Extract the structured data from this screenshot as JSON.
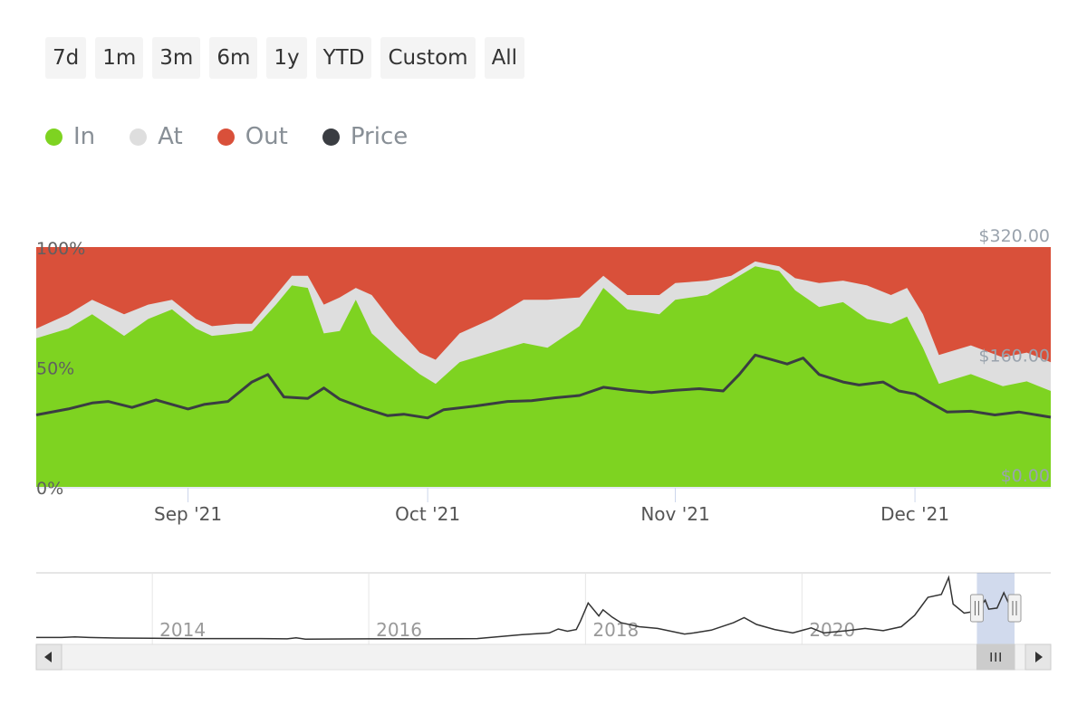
{
  "range_buttons": [
    "7d",
    "1m",
    "3m",
    "6m",
    "1y",
    "YTD",
    "Custom",
    "All"
  ],
  "legend": [
    {
      "label": "In",
      "color": "#7ed321"
    },
    {
      "label": "At",
      "color": "#dedede"
    },
    {
      "label": "Out",
      "color": "#d9503a"
    },
    {
      "label": "Price",
      "color": "#3a3d42"
    }
  ],
  "chart_data": {
    "type": "area",
    "stacked": true,
    "percent": true,
    "x_start": "2021-08-13",
    "x_end": "2021-12-18",
    "x_ticks": [
      {
        "date": "2021-09-01",
        "label": "Sep '21"
      },
      {
        "date": "2021-10-01",
        "label": "Oct '21"
      },
      {
        "date": "2021-11-01",
        "label": "Nov '21"
      },
      {
        "date": "2021-12-01",
        "label": "Dec '21"
      }
    ],
    "y_left": {
      "ticks": [
        "0%",
        "50%",
        "100%"
      ],
      "range": [
        0,
        100
      ]
    },
    "y_right": {
      "ticks": [
        "$0.00",
        "$160.00",
        "$320.00"
      ],
      "range": [
        0,
        320
      ]
    },
    "series_in": [
      [
        "2021-08-13",
        62
      ],
      [
        "2021-08-17",
        66
      ],
      [
        "2021-08-20",
        72
      ],
      [
        "2021-08-24",
        63
      ],
      [
        "2021-08-27",
        70
      ],
      [
        "2021-08-30",
        74
      ],
      [
        "2021-09-02",
        66
      ],
      [
        "2021-09-04",
        63
      ],
      [
        "2021-09-07",
        64
      ],
      [
        "2021-09-09",
        65
      ],
      [
        "2021-09-12",
        76
      ],
      [
        "2021-09-14",
        84
      ],
      [
        "2021-09-16",
        83
      ],
      [
        "2021-09-18",
        64
      ],
      [
        "2021-09-20",
        65
      ],
      [
        "2021-09-22",
        78
      ],
      [
        "2021-09-24",
        64
      ],
      [
        "2021-09-27",
        55
      ],
      [
        "2021-09-30",
        47
      ],
      [
        "2021-10-02",
        43
      ],
      [
        "2021-10-05",
        52
      ],
      [
        "2021-10-09",
        56
      ],
      [
        "2021-10-13",
        60
      ],
      [
        "2021-10-16",
        58
      ],
      [
        "2021-10-20",
        67
      ],
      [
        "2021-10-23",
        83
      ],
      [
        "2021-10-26",
        74
      ],
      [
        "2021-10-30",
        72
      ],
      [
        "2021-11-01",
        78
      ],
      [
        "2021-11-05",
        80
      ],
      [
        "2021-11-08",
        86
      ],
      [
        "2021-11-11",
        92
      ],
      [
        "2021-11-14",
        90
      ],
      [
        "2021-11-16",
        82
      ],
      [
        "2021-11-19",
        75
      ],
      [
        "2021-11-22",
        77
      ],
      [
        "2021-11-25",
        70
      ],
      [
        "2021-11-28",
        68
      ],
      [
        "2021-11-30",
        71
      ],
      [
        "2021-12-02",
        58
      ],
      [
        "2021-12-04",
        43
      ],
      [
        "2021-12-08",
        47
      ],
      [
        "2021-12-12",
        42
      ],
      [
        "2021-12-15",
        44
      ],
      [
        "2021-12-18",
        40
      ]
    ],
    "series_at": [
      [
        "2021-08-13",
        4
      ],
      [
        "2021-08-17",
        6
      ],
      [
        "2021-08-20",
        6
      ],
      [
        "2021-08-24",
        9
      ],
      [
        "2021-08-27",
        6
      ],
      [
        "2021-08-30",
        4
      ],
      [
        "2021-09-02",
        4
      ],
      [
        "2021-09-04",
        4
      ],
      [
        "2021-09-07",
        4
      ],
      [
        "2021-09-09",
        3
      ],
      [
        "2021-09-12",
        4
      ],
      [
        "2021-09-14",
        4
      ],
      [
        "2021-09-16",
        5
      ],
      [
        "2021-09-18",
        12
      ],
      [
        "2021-09-20",
        14
      ],
      [
        "2021-09-22",
        5
      ],
      [
        "2021-09-24",
        16
      ],
      [
        "2021-09-27",
        12
      ],
      [
        "2021-09-30",
        9
      ],
      [
        "2021-10-02",
        10
      ],
      [
        "2021-10-05",
        12
      ],
      [
        "2021-10-09",
        14
      ],
      [
        "2021-10-13",
        18
      ],
      [
        "2021-10-16",
        20
      ],
      [
        "2021-10-20",
        12
      ],
      [
        "2021-10-23",
        5
      ],
      [
        "2021-10-26",
        6
      ],
      [
        "2021-10-30",
        8
      ],
      [
        "2021-11-01",
        7
      ],
      [
        "2021-11-05",
        6
      ],
      [
        "2021-11-08",
        2
      ],
      [
        "2021-11-11",
        2
      ],
      [
        "2021-11-14",
        2
      ],
      [
        "2021-11-16",
        5
      ],
      [
        "2021-11-19",
        10
      ],
      [
        "2021-11-22",
        9
      ],
      [
        "2021-11-25",
        14
      ],
      [
        "2021-11-28",
        12
      ],
      [
        "2021-11-30",
        12
      ],
      [
        "2021-12-02",
        14
      ],
      [
        "2021-12-04",
        12
      ],
      [
        "2021-12-08",
        12
      ],
      [
        "2021-12-12",
        12
      ],
      [
        "2021-12-15",
        12
      ],
      [
        "2021-12-18",
        12
      ]
    ],
    "series_price": [
      [
        "2021-08-13",
        96
      ],
      [
        "2021-08-17",
        104
      ],
      [
        "2021-08-20",
        112
      ],
      [
        "2021-08-22",
        114
      ],
      [
        "2021-08-25",
        106
      ],
      [
        "2021-08-28",
        116
      ],
      [
        "2021-09-01",
        104
      ],
      [
        "2021-09-03",
        110
      ],
      [
        "2021-09-06",
        114
      ],
      [
        "2021-09-09",
        140
      ],
      [
        "2021-09-11",
        150
      ],
      [
        "2021-09-13",
        120
      ],
      [
        "2021-09-16",
        118
      ],
      [
        "2021-09-18",
        132
      ],
      [
        "2021-09-20",
        117
      ],
      [
        "2021-09-23",
        105
      ],
      [
        "2021-09-26",
        95
      ],
      [
        "2021-09-28",
        97
      ],
      [
        "2021-10-01",
        92
      ],
      [
        "2021-10-03",
        103
      ],
      [
        "2021-10-07",
        108
      ],
      [
        "2021-10-11",
        114
      ],
      [
        "2021-10-14",
        115
      ],
      [
        "2021-10-17",
        119
      ],
      [
        "2021-10-20",
        122
      ],
      [
        "2021-10-23",
        133
      ],
      [
        "2021-10-26",
        129
      ],
      [
        "2021-10-29",
        126
      ],
      [
        "2021-11-01",
        129
      ],
      [
        "2021-11-04",
        131
      ],
      [
        "2021-11-07",
        128
      ],
      [
        "2021-11-09",
        150
      ],
      [
        "2021-11-11",
        176
      ],
      [
        "2021-11-13",
        170
      ],
      [
        "2021-11-15",
        164
      ],
      [
        "2021-11-17",
        172
      ],
      [
        "2021-11-19",
        150
      ],
      [
        "2021-11-22",
        140
      ],
      [
        "2021-11-24",
        136
      ],
      [
        "2021-11-27",
        140
      ],
      [
        "2021-11-29",
        128
      ],
      [
        "2021-12-01",
        124
      ],
      [
        "2021-12-03",
        112
      ],
      [
        "2021-12-05",
        100
      ],
      [
        "2021-12-08",
        101
      ],
      [
        "2021-12-11",
        96
      ],
      [
        "2021-12-14",
        100
      ],
      [
        "2021-12-18",
        93
      ]
    ]
  },
  "navigator": {
    "year_labels": [
      "2014",
      "2016",
      "2018",
      "2020"
    ],
    "series": [
      [
        "2013-03-01",
        18
      ],
      [
        "2013-04-15",
        20
      ],
      [
        "2013-06-01",
        18
      ],
      [
        "2013-09-01",
        16
      ],
      [
        "2014-01-01",
        15
      ],
      [
        "2014-06-01",
        14
      ],
      [
        "2015-01-01",
        14
      ],
      [
        "2015-04-01",
        13
      ],
      [
        "2015-05-01",
        17
      ],
      [
        "2015-06-01",
        12
      ],
      [
        "2016-01-01",
        13
      ],
      [
        "2016-07-01",
        13
      ],
      [
        "2017-01-01",
        14
      ],
      [
        "2017-06-01",
        28
      ],
      [
        "2017-09-01",
        34
      ],
      [
        "2017-10-01",
        48
      ],
      [
        "2017-11-01",
        40
      ],
      [
        "2017-12-01",
        46
      ],
      [
        "2017-12-15",
        76
      ],
      [
        "2018-01-10",
        140
      ],
      [
        "2018-02-15",
        94
      ],
      [
        "2018-03-01",
        116
      ],
      [
        "2018-04-01",
        90
      ],
      [
        "2018-05-01",
        70
      ],
      [
        "2018-07-01",
        56
      ],
      [
        "2018-09-01",
        50
      ],
      [
        "2018-12-01",
        30
      ],
      [
        "2019-01-01",
        34
      ],
      [
        "2019-03-01",
        44
      ],
      [
        "2019-05-15",
        70
      ],
      [
        "2019-06-20",
        88
      ],
      [
        "2019-08-01",
        64
      ],
      [
        "2019-10-01",
        46
      ],
      [
        "2019-12-01",
        34
      ],
      [
        "2020-02-01",
        52
      ],
      [
        "2020-03-15",
        34
      ],
      [
        "2020-06-01",
        42
      ],
      [
        "2020-08-01",
        50
      ],
      [
        "2020-10-01",
        42
      ],
      [
        "2020-12-01",
        56
      ],
      [
        "2021-01-15",
        96
      ],
      [
        "2021-03-01",
        160
      ],
      [
        "2021-04-15",
        170
      ],
      [
        "2021-05-10",
        230
      ],
      [
        "2021-05-25",
        136
      ],
      [
        "2021-07-01",
        104
      ],
      [
        "2021-08-15",
        112
      ],
      [
        "2021-09-10",
        150
      ],
      [
        "2021-09-22",
        118
      ],
      [
        "2021-10-20",
        122
      ],
      [
        "2021-11-12",
        176
      ],
      [
        "2021-12-18",
        93
      ]
    ],
    "selection_start": "2021-08-13",
    "selection_end": "2021-12-18"
  }
}
